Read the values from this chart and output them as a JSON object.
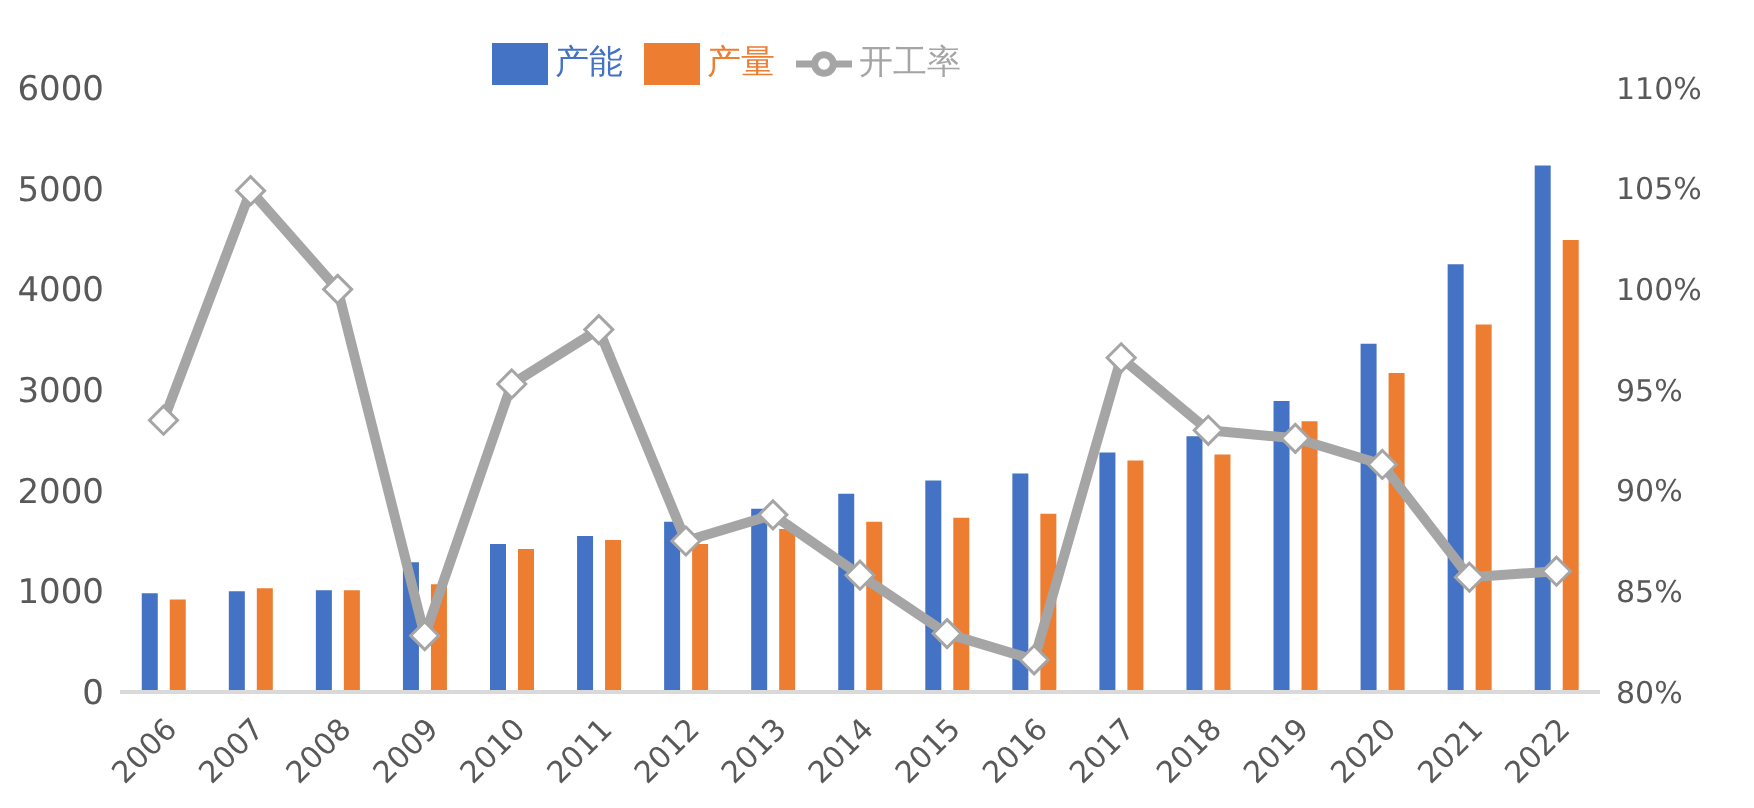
{
  "chart_data": {
    "type": "bar",
    "categories": [
      "2006",
      "2007",
      "2008",
      "2009",
      "2010",
      "2011",
      "2012",
      "2013",
      "2014",
      "2015",
      "2016",
      "2017",
      "2018",
      "2019",
      "2020",
      "2021",
      "2022"
    ],
    "series": [
      {
        "name": "产能",
        "color": "#4472c4",
        "values": [
          980,
          1000,
          1010,
          1290,
          1470,
          1550,
          1690,
          1820,
          1970,
          2100,
          2170,
          2380,
          2540,
          2890,
          3460,
          4250,
          5230
        ]
      },
      {
        "name": "产量",
        "color": "#ed7d31",
        "values": [
          920,
          1030,
          1010,
          1070,
          1420,
          1510,
          1470,
          1620,
          1690,
          1730,
          1770,
          2300,
          2360,
          2690,
          3170,
          3650,
          4490
        ]
      },
      {
        "name": "开工率",
        "type": "line",
        "axis": "y2",
        "color": "#a5a5a5",
        "marker": "diamond",
        "values": [
          93.5,
          104.9,
          100,
          82.8,
          95.3,
          98,
          87.5,
          88.8,
          85.8,
          82.9,
          81.6,
          96.6,
          93,
          92.6,
          91.3,
          85.7,
          86
        ]
      }
    ],
    "ylim": [
      0,
      6000
    ],
    "yticks": [
      0,
      1000,
      2000,
      3000,
      4000,
      5000,
      6000
    ],
    "y2lim": [
      80,
      110
    ],
    "y2ticks": [
      {
        "value": 80,
        "label": "80%"
      },
      {
        "value": 85,
        "label": "85%"
      },
      {
        "value": 90,
        "label": "90%"
      },
      {
        "value": 95,
        "label": "95%"
      },
      {
        "value": 100,
        "label": "100%"
      },
      {
        "value": 105,
        "label": "105%"
      },
      {
        "value": 110,
        "label": "110%"
      }
    ],
    "grid": false,
    "legend": "top"
  }
}
